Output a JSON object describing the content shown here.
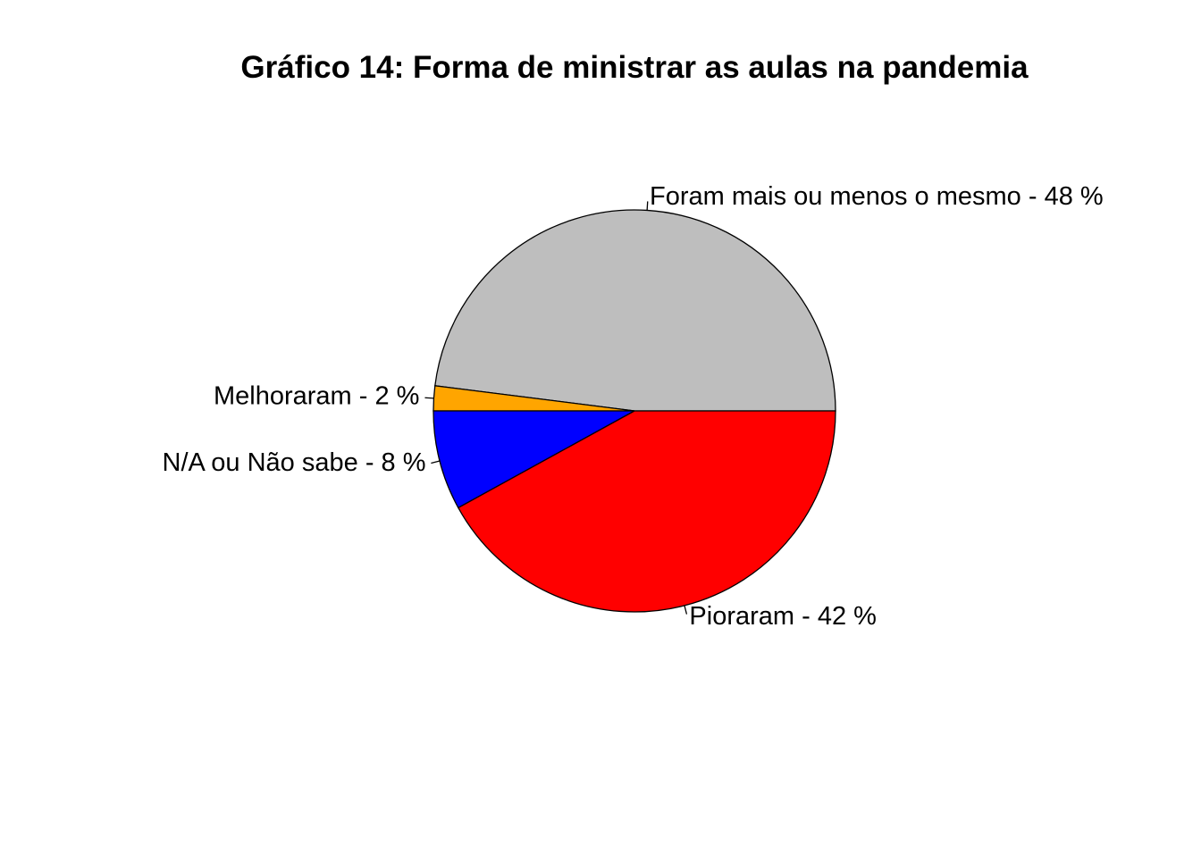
{
  "chart_data": {
    "type": "pie",
    "title": "Gráfico 14: Forma de ministrar as aulas na pandemia",
    "slices": [
      {
        "label": "Foram mais ou menos o mesmo - 48 %",
        "value": 48,
        "color": "#BEBEBE"
      },
      {
        "label": "Melhoraram - 2 %",
        "value": 2,
        "color": "#FFA500"
      },
      {
        "label": "N/A ou Não sabe - 8 %",
        "value": 8,
        "color": "#0000FF"
      },
      {
        "label": "Pioraram - 42 %",
        "value": 42,
        "color": "#FF0000"
      }
    ],
    "start_angle_deg": 0,
    "direction": "counterclockwise"
  }
}
